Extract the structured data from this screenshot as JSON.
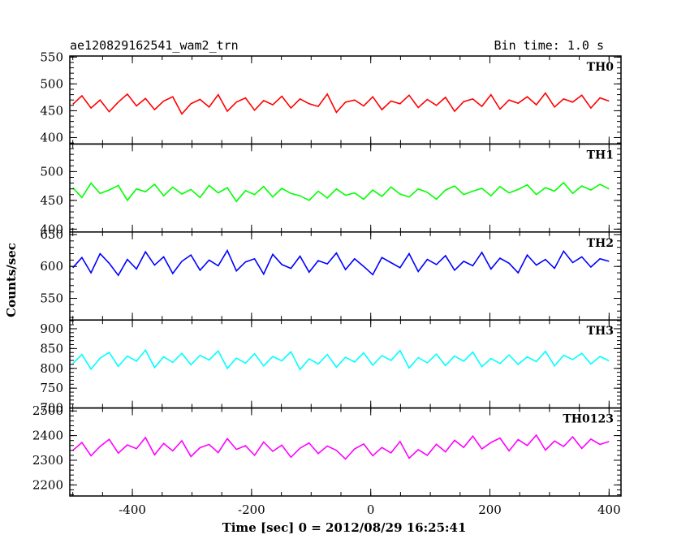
{
  "header": {
    "source": "ae120829162541_wam2_trn",
    "bin_time": "Bin time: 1.0 s"
  },
  "chart_data": {
    "type": "line",
    "title": "ae120829162541_wam2_trn",
    "subtitle": "Bin time: 1.0 s",
    "xlabel": "Time [sec] 0 = 2012/08/29 16:25:41",
    "ylabel": "Counts/sec",
    "xlim": [
      -505,
      420
    ],
    "xticks": [
      -400,
      -200,
      0,
      200,
      400
    ],
    "bin_time_s": 1.0,
    "x_range": [
      -500,
      400
    ],
    "grid": false,
    "panels": [
      {
        "name": "TH0",
        "color": "#ff0000",
        "ylim": [
          388,
          552
        ],
        "yticks": [
          400,
          450,
          500,
          550
        ],
        "values": [
          462,
          478,
          455,
          470,
          448,
          466,
          481,
          459,
          473,
          452,
          468,
          476,
          444,
          463,
          471,
          457,
          480,
          449,
          466,
          474,
          451,
          469,
          461,
          477,
          455,
          472,
          463,
          458,
          481,
          447,
          466,
          470,
          459,
          476,
          452,
          468,
          463,
          479,
          456,
          471,
          460,
          475,
          449,
          467,
          472,
          458,
          480,
          453,
          470,
          464,
          476,
          461,
          483,
          457,
          472,
          466,
          479,
          455,
          474,
          468
        ]
      },
      {
        "name": "TH1",
        "color": "#00ff00",
        "ylim": [
          395,
          548
        ],
        "yticks": [
          400,
          450,
          500
        ],
        "values": [
          472,
          455,
          480,
          462,
          468,
          476,
          450,
          470,
          465,
          478,
          458,
          473,
          461,
          469,
          455,
          476,
          463,
          472,
          448,
          467,
          460,
          474,
          456,
          471,
          462,
          458,
          450,
          466,
          454,
          470,
          459,
          463,
          452,
          468,
          457,
          473,
          461,
          456,
          470,
          464,
          452,
          468,
          475,
          460,
          466,
          471,
          458,
          474,
          463,
          469,
          477,
          460,
          472,
          466,
          481,
          462,
          475,
          468,
          478,
          470
        ]
      },
      {
        "name": "TH2",
        "color": "#0000ff",
        "ylim": [
          516,
          654
        ],
        "yticks": [
          550,
          600,
          650
        ],
        "values": [
          598,
          614,
          590,
          620,
          605,
          586,
          611,
          596,
          623,
          602,
          615,
          589,
          608,
          618,
          594,
          610,
          601,
          625,
          593,
          607,
          612,
          588,
          619,
          603,
          597,
          616,
          591,
          609,
          604,
          621,
          595,
          612,
          600,
          587,
          614,
          606,
          598,
          620,
          592,
          611,
          603,
          617,
          594,
          608,
          601,
          622,
          596,
          613,
          605,
          590,
          618,
          602,
          611,
          597,
          624,
          606,
          615,
          599,
          612,
          608
        ]
      },
      {
        "name": "TH3",
        "color": "#00ffff",
        "ylim": [
          700,
          922
        ],
        "yticks": [
          700,
          750,
          800,
          850,
          900
        ],
        "values": [
          812,
          835,
          798,
          826,
          840,
          805,
          831,
          818,
          846,
          802,
          829,
          815,
          838,
          809,
          833,
          821,
          844,
          800,
          826,
          813,
          837,
          806,
          830,
          819,
          842,
          797,
          824,
          811,
          835,
          803,
          828,
          816,
          839,
          808,
          832,
          820,
          845,
          801,
          827,
          814,
          836,
          807,
          831,
          818,
          841,
          804,
          825,
          812,
          834,
          810,
          829,
          817,
          843,
          806,
          833,
          822,
          838,
          811,
          830,
          819
        ]
      },
      {
        "name": "TH0123",
        "color": "#ff00ff",
        "ylim": [
          2155,
          2512
        ],
        "yticks": [
          2200,
          2300,
          2400,
          2500
        ],
        "values": [
          2340,
          2372,
          2318,
          2356,
          2385,
          2329,
          2362,
          2347,
          2392,
          2322,
          2368,
          2338,
          2379,
          2315,
          2351,
          2364,
          2331,
          2388,
          2344,
          2359,
          2320,
          2374,
          2336,
          2361,
          2312,
          2349,
          2370,
          2327,
          2358,
          2340,
          2305,
          2346,
          2366,
          2318,
          2352,
          2330,
          2376,
          2308,
          2343,
          2320,
          2365,
          2334,
          2381,
          2352,
          2398,
          2346,
          2372,
          2390,
          2338,
          2384,
          2360,
          2402,
          2341,
          2378,
          2356,
          2395,
          2348,
          2386,
          2364,
          2376
        ]
      }
    ]
  }
}
